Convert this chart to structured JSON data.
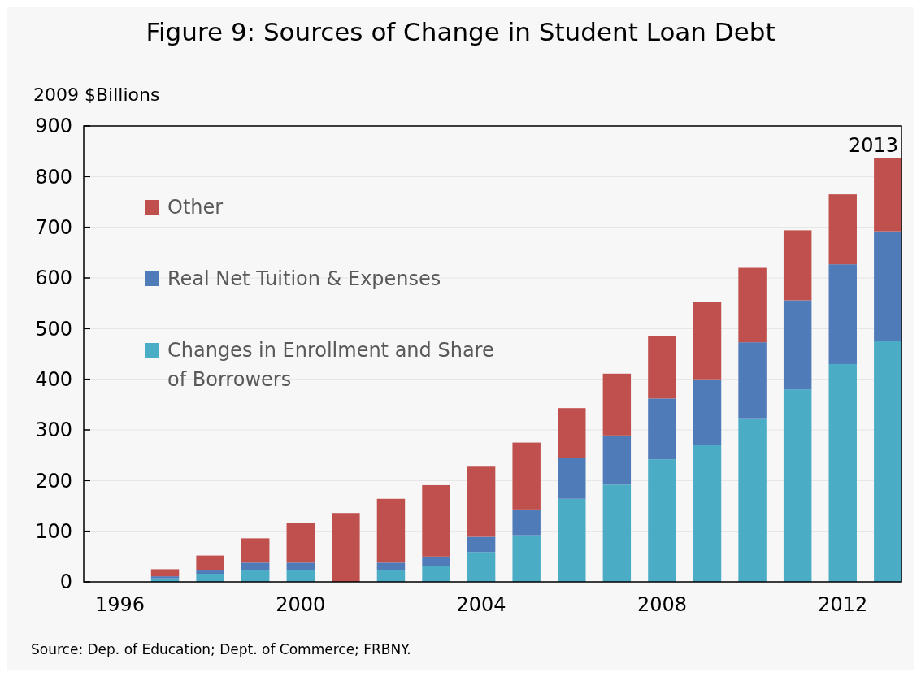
{
  "chart_data": {
    "type": "bar",
    "title": "Figure 9: Sources of Change in Student Loan Debt",
    "ylabel": "2009 $Billions",
    "x": [
      1997,
      1998,
      1999,
      2000,
      2001,
      2002,
      2003,
      2004,
      2005,
      2006,
      2007,
      2008,
      2009,
      2010,
      2011,
      2012,
      2013
    ],
    "stacked": true,
    "series": [
      {
        "name": "Changes in Enrollment and Share of Borrowers",
        "color": "#4bacc6",
        "values": [
          7,
          16,
          24,
          24,
          0,
          24,
          32,
          59,
          92,
          164,
          192,
          242,
          270,
          323,
          380,
          430,
          476
        ]
      },
      {
        "name": "Real Net Tuition & Expenses",
        "color": "#4f7bb9",
        "values": [
          4,
          8,
          14,
          14,
          0,
          14,
          18,
          30,
          51,
          80,
          97,
          120,
          130,
          150,
          176,
          197,
          216
        ]
      },
      {
        "name": "Other",
        "color": "#c0504d",
        "values": [
          14,
          28,
          48,
          79,
          136,
          126,
          141,
          140,
          132,
          99,
          122,
          123,
          153,
          147,
          138,
          138,
          144
        ]
      }
    ],
    "xlim": [
      1995.2,
      2013.3
    ],
    "xticks": [
      1996,
      2000,
      2004,
      2008,
      2012
    ],
    "ylim": [
      0,
      900
    ],
    "yticks": [
      0,
      100,
      200,
      300,
      400,
      500,
      600,
      700,
      800,
      900
    ],
    "grid": "y",
    "legend": "top left",
    "annotations": [
      {
        "text": "2013",
        "x": 2013,
        "y": 836
      },
      "Source: Dep. of Education; Dept. of Commerce; FRBNY."
    ]
  }
}
